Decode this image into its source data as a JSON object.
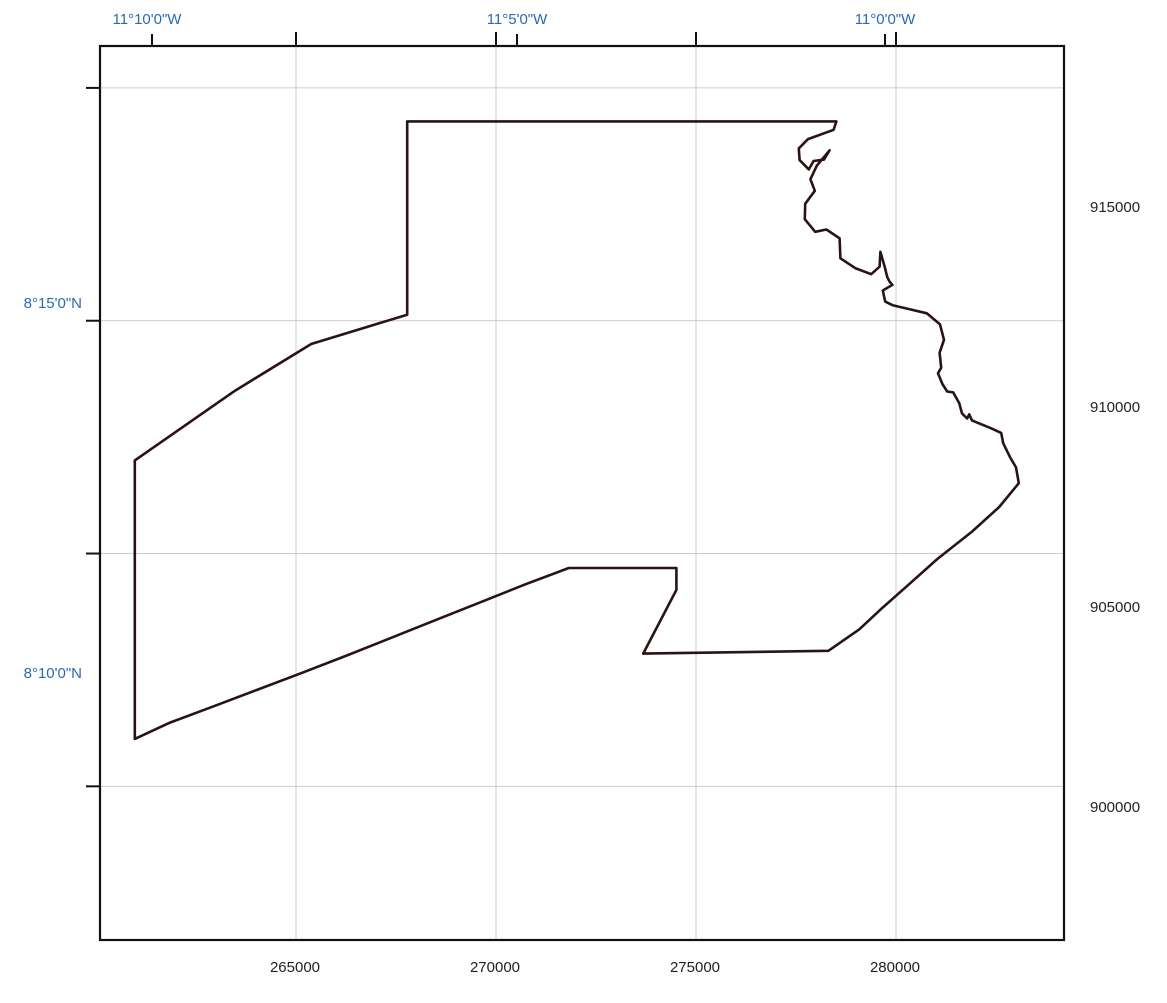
{
  "map": {
    "top_geo_labels": [
      "11°10'0\"W",
      "11°5'0\"W",
      "11°0'0\"W"
    ],
    "left_geo_labels": [
      "8°15'0\"N",
      "8°10'0\"N"
    ],
    "x_ticks": [
      "265000",
      "270000",
      "275000",
      "280000"
    ],
    "y_ticks": [
      "915000",
      "910000",
      "905000",
      "900000"
    ],
    "x_range": [
      260100,
      284200
    ],
    "y_range": [
      896700,
      915900
    ],
    "grid": true,
    "colors": {
      "frame": "#111111",
      "grid": "#cccccc",
      "boundary": "#2b1214",
      "geo_label": "#2a6ab0",
      "proj_label": "#222222"
    },
    "boundary_x": [
      267780,
      278510,
      278440,
      277800,
      277570,
      277590,
      277820,
      277940,
      278200,
      278340,
      278020,
      277860,
      277970,
      277730,
      277720,
      277980,
      278260,
      278590,
      278610,
      278980,
      279380,
      279590,
      279610,
      279720,
      279780,
      279830,
      279910,
      279670,
      279730,
      279930,
      280330,
      280770,
      281100,
      281200,
      281090,
      281130,
      281050,
      281160,
      281280,
      281430,
      281580,
      281650,
      281780,
      281830,
      281900,
      282120,
      282350,
      282630,
      282680,
      282850,
      283000,
      283070,
      282580,
      281900,
      281030,
      280300,
      279630,
      279080,
      278310,
      273680,
      274510,
      274510,
      271820,
      270710,
      269600,
      268490,
      267380,
      266270,
      265160,
      264050,
      262940,
      261850,
      260970,
      260970,
      263480,
      265380,
      267780,
      267780
    ],
    "boundary_y": [
      914280,
      914280,
      914100,
      913900,
      913700,
      913450,
      913250,
      913430,
      913460,
      913660,
      913330,
      913040,
      912790,
      912510,
      912180,
      911910,
      911960,
      911770,
      911340,
      911130,
      911000,
      911160,
      911480,
      911150,
      910940,
      910850,
      910770,
      910650,
      910410,
      910330,
      910250,
      910160,
      909920,
      909590,
      909310,
      908990,
      908870,
      908640,
      908480,
      908460,
      908230,
      908010,
      907900,
      907990,
      907860,
      907780,
      907700,
      907590,
      907370,
      907070,
      906850,
      906510,
      906000,
      905470,
      904880,
      904320,
      903810,
      903370,
      902910,
      902850,
      904220,
      904690,
      904690,
      904330,
      903950,
      903570,
      903190,
      902810,
      902440,
      902080,
      901720,
      901370,
      901020,
      907000,
      908500,
      909500,
      910130,
      914280
    ]
  }
}
